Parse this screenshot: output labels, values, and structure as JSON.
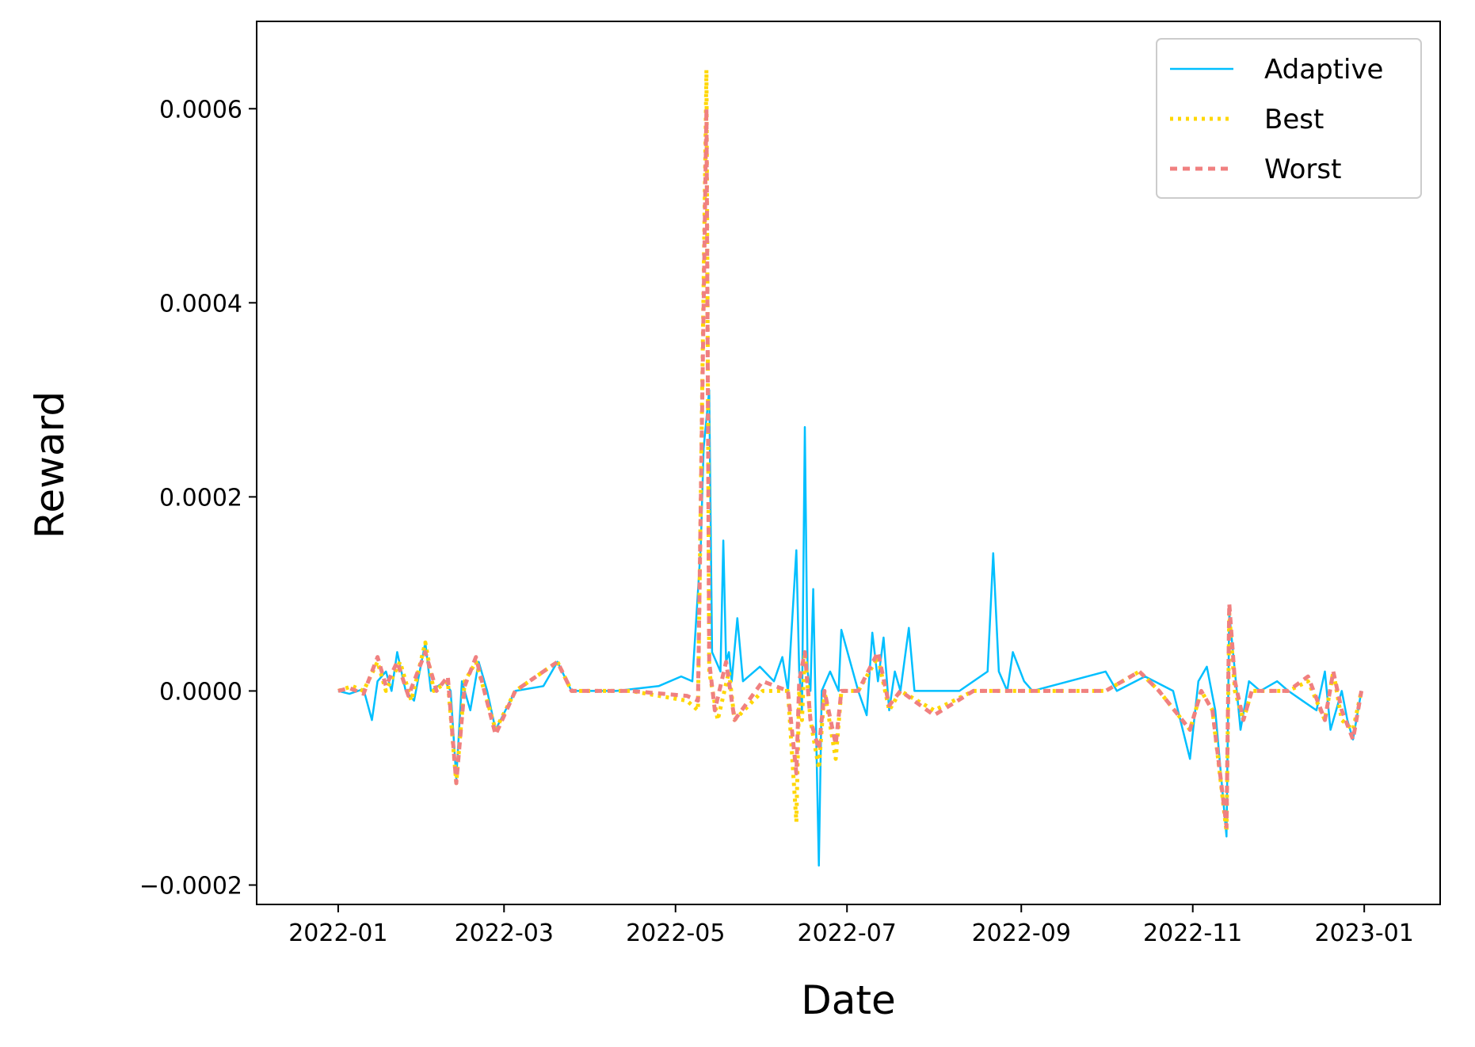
{
  "chart_data": {
    "type": "line",
    "title": "",
    "xlabel": "Date",
    "ylabel": "Reward",
    "x_axis_kind": "date",
    "xlim": [
      "2021-12-03",
      "2023-01-28"
    ],
    "ylim": [
      -0.00022,
      0.00069
    ],
    "x_ticks": [
      "2022-01-01",
      "2022-03-01",
      "2022-05-01",
      "2022-07-01",
      "2022-09-01",
      "2022-11-01",
      "2023-01-01"
    ],
    "x_tick_labels": [
      "2022-01",
      "2022-03",
      "2022-05",
      "2022-07",
      "2022-09",
      "2022-11",
      "2023-01"
    ],
    "y_ticks": [
      -0.0002,
      0,
      0.0002,
      0.0004,
      0.0006
    ],
    "y_tick_labels": [
      "−0.0002",
      "0.0000",
      "0.0002",
      "0.0004",
      "0.0006"
    ],
    "grid": false,
    "legend_position": "top-right",
    "series": [
      {
        "name": "Adaptive",
        "color": "#00bfff",
        "line_style": "solid",
        "points": [
          [
            "2022-01-01",
            0.0
          ],
          [
            "2022-01-05",
            -3e-06
          ],
          [
            "2022-01-10",
            2e-06
          ],
          [
            "2022-01-13",
            -3e-05
          ],
          [
            "2022-01-15",
            1e-05
          ],
          [
            "2022-01-18",
            2e-05
          ],
          [
            "2022-01-20",
            0.0
          ],
          [
            "2022-01-22",
            4e-05
          ],
          [
            "2022-01-25",
            0.0
          ],
          [
            "2022-01-28",
            -1e-05
          ],
          [
            "2022-02-01",
            5e-05
          ],
          [
            "2022-02-03",
            0.0
          ],
          [
            "2022-02-08",
            1e-05
          ],
          [
            "2022-02-10",
            0.0
          ],
          [
            "2022-02-12",
            -9e-05
          ],
          [
            "2022-02-14",
            1e-05
          ],
          [
            "2022-02-17",
            -2e-05
          ],
          [
            "2022-02-20",
            3e-05
          ],
          [
            "2022-02-23",
            0.0
          ],
          [
            "2022-02-26",
            -4e-05
          ],
          [
            "2022-03-05",
            0.0
          ],
          [
            "2022-03-15",
            5e-06
          ],
          [
            "2022-03-20",
            3e-05
          ],
          [
            "2022-03-25",
            0.0
          ],
          [
            "2022-04-10",
            0.0
          ],
          [
            "2022-04-25",
            5e-06
          ],
          [
            "2022-05-03",
            1.5e-05
          ],
          [
            "2022-05-07",
            1e-05
          ],
          [
            "2022-05-10",
            0.00015
          ],
          [
            "2022-05-11",
            0.00025
          ],
          [
            "2022-05-13",
            0.00031
          ],
          [
            "2022-05-14",
            4e-05
          ],
          [
            "2022-05-17",
            2e-05
          ],
          [
            "2022-05-18",
            0.000155
          ],
          [
            "2022-05-19",
            3e-05
          ],
          [
            "2022-05-20",
            4e-05
          ],
          [
            "2022-05-21",
            1e-05
          ],
          [
            "2022-05-23",
            7.5e-05
          ],
          [
            "2022-05-25",
            1e-05
          ],
          [
            "2022-05-31",
            2.5e-05
          ],
          [
            "2022-06-05",
            1e-05
          ],
          [
            "2022-06-08",
            3.5e-05
          ],
          [
            "2022-06-10",
            0.0
          ],
          [
            "2022-06-13",
            0.000145
          ],
          [
            "2022-06-14",
            2e-05
          ],
          [
            "2022-06-15",
            -2e-05
          ],
          [
            "2022-06-16",
            0.000272
          ],
          [
            "2022-06-17",
            2e-05
          ],
          [
            "2022-06-18",
            0.0
          ],
          [
            "2022-06-19",
            0.000105
          ],
          [
            "2022-06-20",
            -4e-05
          ],
          [
            "2022-06-21",
            -0.00018
          ],
          [
            "2022-06-22",
            0.0
          ],
          [
            "2022-06-25",
            2e-05
          ],
          [
            "2022-06-28",
            0.0
          ],
          [
            "2022-06-29",
            6.3e-05
          ],
          [
            "2022-07-05",
            0.0
          ],
          [
            "2022-07-08",
            -2.5e-05
          ],
          [
            "2022-07-10",
            6e-05
          ],
          [
            "2022-07-12",
            1e-05
          ],
          [
            "2022-07-14",
            5.5e-05
          ],
          [
            "2022-07-16",
            -2e-05
          ],
          [
            "2022-07-18",
            2e-05
          ],
          [
            "2022-07-20",
            0.0
          ],
          [
            "2022-07-23",
            6.5e-05
          ],
          [
            "2022-07-25",
            0.0
          ],
          [
            "2022-08-10",
            0.0
          ],
          [
            "2022-08-20",
            2e-05
          ],
          [
            "2022-08-22",
            0.000142
          ],
          [
            "2022-08-24",
            2e-05
          ],
          [
            "2022-08-27",
            0.0
          ],
          [
            "2022-08-29",
            4e-05
          ],
          [
            "2022-09-02",
            1e-05
          ],
          [
            "2022-09-05",
            0.0
          ],
          [
            "2022-10-01",
            2e-05
          ],
          [
            "2022-10-05",
            0.0
          ],
          [
            "2022-10-15",
            1.5e-05
          ],
          [
            "2022-10-25",
            0.0
          ],
          [
            "2022-10-31",
            -7e-05
          ],
          [
            "2022-11-03",
            1e-05
          ],
          [
            "2022-11-06",
            2.5e-05
          ],
          [
            "2022-11-09",
            -2e-05
          ],
          [
            "2022-11-13",
            -0.00015
          ],
          [
            "2022-11-14",
            8e-05
          ],
          [
            "2022-11-16",
            2e-05
          ],
          [
            "2022-11-18",
            -4e-05
          ],
          [
            "2022-11-21",
            1e-05
          ],
          [
            "2022-11-25",
            0.0
          ],
          [
            "2022-12-01",
            1e-05
          ],
          [
            "2022-12-05",
            0.0
          ],
          [
            "2022-12-10",
            -1e-05
          ],
          [
            "2022-12-15",
            -2e-05
          ],
          [
            "2022-12-18",
            2e-05
          ],
          [
            "2022-12-20",
            -4e-05
          ],
          [
            "2022-12-24",
            0.0
          ],
          [
            "2022-12-26",
            -3e-05
          ],
          [
            "2022-12-28",
            -5e-05
          ],
          [
            "2022-12-31",
            0.0
          ]
        ]
      },
      {
        "name": "Best",
        "color": "#ffd700",
        "line_style": "dotted",
        "points": [
          [
            "2022-01-01",
            0.0
          ],
          [
            "2022-01-06",
            5e-06
          ],
          [
            "2022-01-10",
            0.0
          ],
          [
            "2022-01-15",
            3e-05
          ],
          [
            "2022-01-18",
            0.0
          ],
          [
            "2022-01-23",
            3e-05
          ],
          [
            "2022-01-27",
            -1e-05
          ],
          [
            "2022-02-01",
            5e-05
          ],
          [
            "2022-02-04",
            0.0
          ],
          [
            "2022-02-09",
            1e-05
          ],
          [
            "2022-02-12",
            -9.5e-05
          ],
          [
            "2022-02-15",
            1e-05
          ],
          [
            "2022-02-19",
            3e-05
          ],
          [
            "2022-02-22",
            0.0
          ],
          [
            "2022-02-26",
            -4e-05
          ],
          [
            "2022-03-05",
            0.0
          ],
          [
            "2022-03-20",
            3e-05
          ],
          [
            "2022-03-25",
            0.0
          ],
          [
            "2022-04-15",
            0.0
          ],
          [
            "2022-05-05",
            -1e-05
          ],
          [
            "2022-05-09",
            -2e-05
          ],
          [
            "2022-05-12",
            0.00064
          ],
          [
            "2022-05-13",
            2e-05
          ],
          [
            "2022-05-16",
            -3e-05
          ],
          [
            "2022-05-20",
            2e-05
          ],
          [
            "2022-05-22",
            -3e-05
          ],
          [
            "2022-06-01",
            0.0
          ],
          [
            "2022-06-10",
            0.0
          ],
          [
            "2022-06-13",
            -0.000135
          ],
          [
            "2022-06-14",
            0.0
          ],
          [
            "2022-06-15",
            -3e-05
          ],
          [
            "2022-06-16",
            4e-05
          ],
          [
            "2022-06-18",
            -3e-05
          ],
          [
            "2022-06-21",
            -8e-05
          ],
          [
            "2022-06-23",
            0.0
          ],
          [
            "2022-06-27",
            -7e-05
          ],
          [
            "2022-06-29",
            0.0
          ],
          [
            "2022-07-05",
            0.0
          ],
          [
            "2022-07-12",
            3.5e-05
          ],
          [
            "2022-07-16",
            -2e-05
          ],
          [
            "2022-07-20",
            0.0
          ],
          [
            "2022-08-01",
            -2e-05
          ],
          [
            "2022-08-15",
            0.0
          ],
          [
            "2022-09-15",
            0.0
          ],
          [
            "2022-10-01",
            0.0
          ],
          [
            "2022-10-13",
            2e-05
          ],
          [
            "2022-10-20",
            0.0
          ],
          [
            "2022-10-31",
            -4e-05
          ],
          [
            "2022-11-04",
            0.0
          ],
          [
            "2022-11-08",
            -2e-05
          ],
          [
            "2022-11-13",
            -0.000145
          ],
          [
            "2022-11-14",
            8e-05
          ],
          [
            "2022-11-16",
            0.0
          ],
          [
            "2022-11-19",
            -3e-05
          ],
          [
            "2022-11-22",
            0.0
          ],
          [
            "2022-12-05",
            0.0
          ],
          [
            "2022-12-12",
            1e-05
          ],
          [
            "2022-12-18",
            -3e-05
          ],
          [
            "2022-12-21",
            2e-05
          ],
          [
            "2022-12-24",
            -3e-05
          ],
          [
            "2022-12-28",
            -4e-05
          ],
          [
            "2022-12-31",
            0.0
          ]
        ]
      },
      {
        "name": "Worst",
        "color": "#f08080",
        "line_style": "dashed",
        "points": [
          [
            "2022-01-01",
            0.0
          ],
          [
            "2022-01-05",
            3e-06
          ],
          [
            "2022-01-10",
            -3e-06
          ],
          [
            "2022-01-15",
            3.5e-05
          ],
          [
            "2022-01-18",
            5e-06
          ],
          [
            "2022-01-22",
            3e-05
          ],
          [
            "2022-01-26",
            -5e-06
          ],
          [
            "2022-02-01",
            4e-05
          ],
          [
            "2022-02-05",
            0.0
          ],
          [
            "2022-02-09",
            1.5e-05
          ],
          [
            "2022-02-12",
            -9.5e-05
          ],
          [
            "2022-02-15",
            5e-06
          ],
          [
            "2022-02-19",
            3.5e-05
          ],
          [
            "2022-02-22",
            0.0
          ],
          [
            "2022-02-26",
            -4.5e-05
          ],
          [
            "2022-03-05",
            0.0
          ],
          [
            "2022-03-20",
            3e-05
          ],
          [
            "2022-03-25",
            0.0
          ],
          [
            "2022-04-15",
            0.0
          ],
          [
            "2022-05-05",
            -5e-06
          ],
          [
            "2022-05-09",
            -1e-05
          ],
          [
            "2022-05-12",
            0.0006
          ],
          [
            "2022-05-13",
            3e-05
          ],
          [
            "2022-05-15",
            -2e-05
          ],
          [
            "2022-05-19",
            3e-05
          ],
          [
            "2022-05-22",
            -3e-05
          ],
          [
            "2022-06-01",
            1e-05
          ],
          [
            "2022-06-10",
            0.0
          ],
          [
            "2022-06-13",
            -8.5e-05
          ],
          [
            "2022-06-14",
            1e-05
          ],
          [
            "2022-06-16",
            4e-05
          ],
          [
            "2022-06-18",
            -3e-05
          ],
          [
            "2022-06-21",
            -6e-05
          ],
          [
            "2022-06-23",
            0.0
          ],
          [
            "2022-06-27",
            -5.5e-05
          ],
          [
            "2022-06-29",
            0.0
          ],
          [
            "2022-07-05",
            0.0
          ],
          [
            "2022-07-12",
            4e-05
          ],
          [
            "2022-07-16",
            -1.5e-05
          ],
          [
            "2022-07-20",
            0.0
          ],
          [
            "2022-08-01",
            -2.5e-05
          ],
          [
            "2022-08-15",
            0.0
          ],
          [
            "2022-09-15",
            0.0
          ],
          [
            "2022-10-01",
            0.0
          ],
          [
            "2022-10-13",
            2e-05
          ],
          [
            "2022-10-20",
            0.0
          ],
          [
            "2022-10-31",
            -4e-05
          ],
          [
            "2022-11-04",
            0.0
          ],
          [
            "2022-11-08",
            -2e-05
          ],
          [
            "2022-11-13",
            -0.00014
          ],
          [
            "2022-11-14",
            9e-05
          ],
          [
            "2022-11-16",
            1e-05
          ],
          [
            "2022-11-19",
            -3e-05
          ],
          [
            "2022-11-22",
            0.0
          ],
          [
            "2022-12-05",
            0.0
          ],
          [
            "2022-12-12",
            1.5e-05
          ],
          [
            "2022-12-18",
            -3e-05
          ],
          [
            "2022-12-21",
            2e-05
          ],
          [
            "2022-12-24",
            -2e-05
          ],
          [
            "2022-12-28",
            -5e-05
          ],
          [
            "2022-12-31",
            0.0
          ]
        ]
      }
    ]
  }
}
